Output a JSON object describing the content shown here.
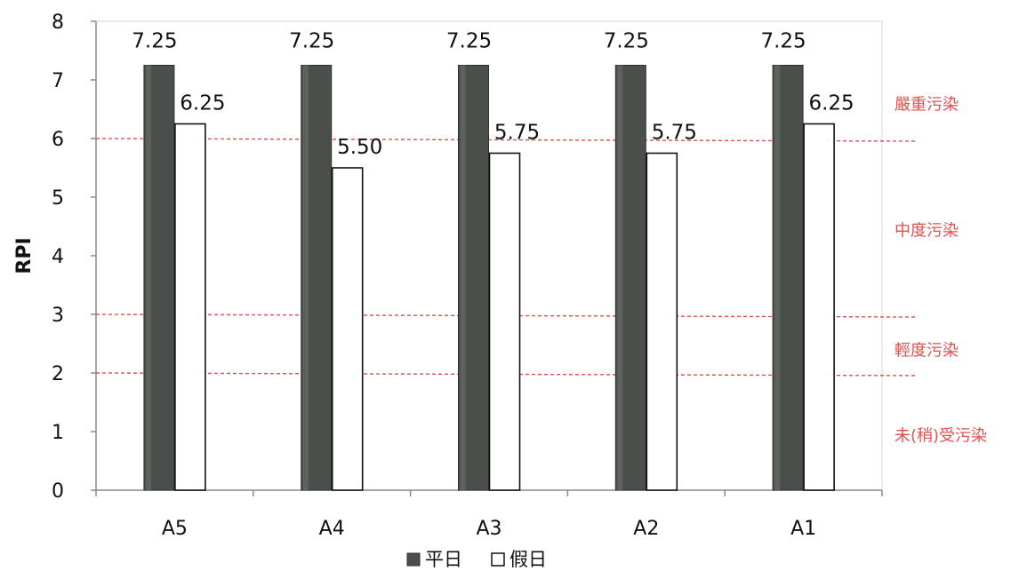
{
  "chart_data": {
    "type": "bar",
    "categories": [
      "A5",
      "A4",
      "A3",
      "A2",
      "A1"
    ],
    "series": [
      {
        "name": "平日",
        "values": [
          7.25,
          7.25,
          7.25,
          7.25,
          7.25
        ],
        "labels": [
          "7.25",
          "7.25",
          "7.25",
          "7.25",
          "7.25"
        ],
        "color": "#4a4f4b"
      },
      {
        "name": "假日",
        "values": [
          6.25,
          5.5,
          5.75,
          5.75,
          6.25
        ],
        "labels": [
          "6.25",
          "5.50",
          "5.75",
          "5.75",
          "6.25"
        ],
        "color": "#ffffff"
      }
    ],
    "ylabel": "RPI",
    "xlabel": "",
    "ylim": [
      0,
      8
    ],
    "yticks": [
      "0",
      "1",
      "2",
      "3",
      "4",
      "5",
      "6",
      "7",
      "8"
    ],
    "thresholds": [
      {
        "value": 6,
        "color": "#e0504f"
      },
      {
        "value": 3,
        "color": "#e0504f"
      },
      {
        "value": 2,
        "color": "#e0504f"
      }
    ],
    "bands": [
      {
        "label": "嚴重污染",
        "level": 6.6
      },
      {
        "label": "中度污染",
        "level": 4.45
      },
      {
        "label": "輕度污染",
        "level": 2.4
      },
      {
        "label": "未(稍)受污染",
        "level": 0.95
      }
    ],
    "legend": {
      "position": "bottom",
      "items": [
        "平日",
        "假日"
      ]
    },
    "grid": false
  }
}
